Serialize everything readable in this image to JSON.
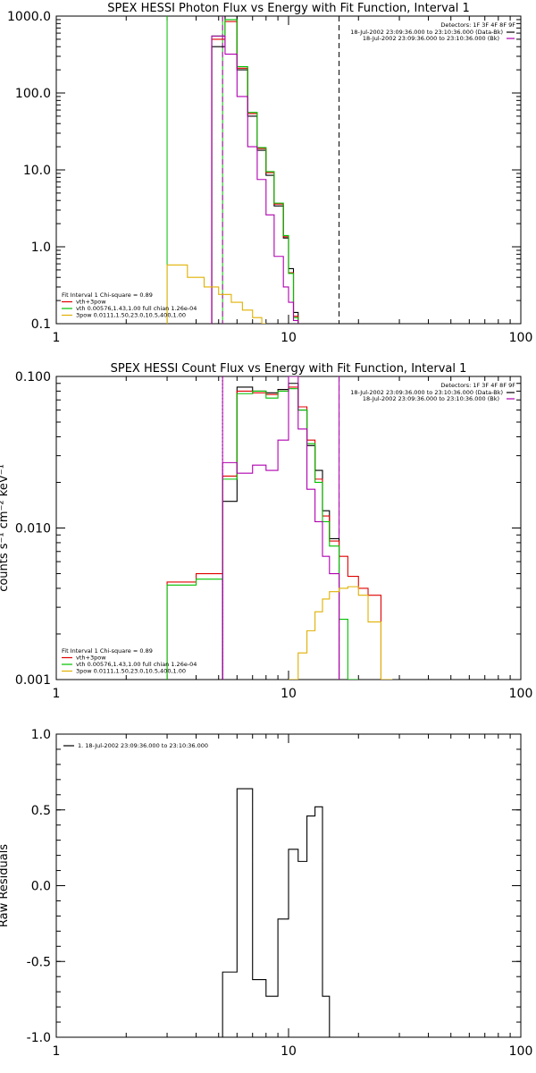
{
  "chart_data": [
    {
      "type": "line",
      "title": "SPEX HESSI Photon Flux vs Energy with Fit Function, Interval 1",
      "xlabel": "",
      "ylabel": "",
      "xscale": "log",
      "yscale": "log",
      "xlim": [
        1,
        100
      ],
      "ylim": [
        0.1,
        1000
      ],
      "xtick_labels": [
        "1",
        "10",
        "100"
      ],
      "ytick_labels": [
        "0.1",
        "1.0",
        "10.0",
        "100.0",
        "1000.0"
      ],
      "ytick_values": [
        0.1,
        1,
        10,
        100,
        1000
      ],
      "detectors_label": "Detectors: 1F 3F 4F 8F 9F",
      "time_labels": [
        "18-Jul-2002 23:09:36.000 to 23:10:36.000 (Data-Bk)",
        "18-Jul-2002 23:09:36.000 to 23:10:36.000 (Bk)"
      ],
      "fit_legend": [
        {
          "text": "Fit Interval 1    Chi-square = 0.89",
          "color": ""
        },
        {
          "text": "vth+3pow",
          "color": "#e00000"
        },
        {
          "text": "vth 0.00576,1.43,1.00  full chian 1.26e-04",
          "color": "#00c000"
        },
        {
          "text": "3pow 0.0111,1.50,23.0,10.5,400,1.00",
          "color": "#e0b000"
        }
      ],
      "vlines": [
        {
          "x": 3.0,
          "color": "#00c000",
          "style": "solid"
        },
        {
          "x": 5.2,
          "color": "#00c000",
          "style": "solid"
        },
        {
          "x": 5.2,
          "color": "#b000b0",
          "style": "dashed"
        },
        {
          "x": 16.5,
          "color": "#000000",
          "style": "dashed"
        }
      ],
      "edges": [
        3.0,
        3.33,
        3.67,
        4.0,
        4.33,
        4.67,
        5.0,
        5.33,
        5.67,
        6.0,
        6.33,
        6.67,
        7.0,
        7.33,
        7.67,
        8.0,
        8.33,
        8.67,
        9.0,
        9.5,
        10.0,
        10.5,
        11.0,
        11.5,
        12.0,
        12.5,
        13.0,
        14.0,
        15.0,
        16.0,
        17.0
      ],
      "series": [
        {
          "color": "#000000",
          "start": 5,
          "values": [
            400,
            400,
            1000,
            1000,
            200,
            200,
            50,
            50,
            18,
            18,
            8.5,
            8.5,
            3.4,
            3.4,
            1.3,
            0.52,
            0.14
          ]
        },
        {
          "color": "#e00000",
          "start": 5,
          "values": [
            500,
            500,
            850,
            850,
            210,
            210,
            54,
            54,
            19,
            19,
            9.2,
            9.2,
            3.6,
            3.6,
            1.35,
            0.46,
            0.125
          ]
        },
        {
          "color": "#00c000",
          "start": 5,
          "values": [
            550,
            550,
            900,
            900,
            220,
            220,
            56,
            56,
            19.5,
            19.5,
            9.5,
            9.5,
            3.7,
            3.7,
            1.4,
            0.45,
            0.12
          ]
        },
        {
          "color": "#b000b0",
          "start": 5,
          "values": [
            550,
            550,
            320,
            320,
            90,
            90,
            20,
            20,
            7.5,
            7.5,
            2.6,
            2.6,
            0.75,
            0.75,
            0.3,
            0.19,
            0.11
          ]
        },
        {
          "color": "#e0b000",
          "start": 0,
          "values": [
            0.58,
            0.58,
            0.4,
            0.4,
            0.3,
            0.3,
            0.24,
            0.24,
            0.19,
            0.19,
            0.15,
            0.15,
            0.12,
            0.12,
            0.1
          ]
        }
      ]
    },
    {
      "type": "line",
      "title": "SPEX HESSI Count Flux vs Energy with Fit Function, Interval 1",
      "xlabel": "",
      "ylabel": "counts s⁻¹ cm⁻² keV⁻¹",
      "xscale": "log",
      "yscale": "log",
      "xlim": [
        1,
        100
      ],
      "ylim": [
        0.001,
        0.1
      ],
      "xtick_labels": [
        "1",
        "10",
        "100"
      ],
      "ytick_labels": [
        "0.001",
        "0.010",
        "0.100"
      ],
      "ytick_values": [
        0.001,
        0.01,
        0.1
      ],
      "detectors_label": "Detectors: 1F 3F 4F 8F 9F",
      "time_labels": [
        "18-Jul-2002 23:09:36.000 to 23:10:36.000 (Data-Bk)",
        "18-Jul-2002 23:09:36.000 to 23:10:36.000 (Bk)"
      ],
      "fit_legend": [
        {
          "text": "Fit Interval 1    Chi-square = 0.89",
          "color": ""
        },
        {
          "text": "vth+3pow",
          "color": "#e00000"
        },
        {
          "text": "vth 0.00576,1.43,1.00  full chian 1.26e-04",
          "color": "#00c000"
        },
        {
          "text": "3pow 0.0111,1.50,23.0,10.5,400,1.00",
          "color": "#e0b000"
        }
      ],
      "vlines": [
        {
          "x": 5.2,
          "color": "#000000",
          "style": "dotted"
        },
        {
          "x": 5.2,
          "color": "#b000b0",
          "style": "solid"
        },
        {
          "x": 16.5,
          "color": "#000000",
          "style": "dashed"
        },
        {
          "x": 16.5,
          "color": "#b000b0",
          "style": "solid"
        }
      ],
      "edges": [
        3.0,
        4.0,
        5.2,
        6.0,
        7.0,
        8.0,
        9.0,
        10.0,
        11.0,
        12.0,
        13.0,
        14.0,
        15.0,
        16.5,
        18.0,
        20.0,
        22.0,
        25.0,
        28.0
      ],
      "series": [
        {
          "color": "#000000",
          "start": 2,
          "values": [
            0.015,
            0.085,
            0.08,
            0.078,
            0.082,
            0.09,
            0.06,
            0.035,
            0.024,
            0.013,
            0.0085
          ]
        },
        {
          "color": "#e00000",
          "start": 0,
          "values": [
            0.0044,
            0.005,
            0.022,
            0.08,
            0.078,
            0.076,
            0.08,
            0.085,
            0.063,
            0.038,
            0.021,
            0.012,
            0.0082,
            0.0065,
            0.0048,
            0.004,
            0.0036
          ]
        },
        {
          "color": "#00c000",
          "start": 0,
          "values": [
            0.0042,
            0.0046,
            0.021,
            0.077,
            0.08,
            0.072,
            0.08,
            0.083,
            0.06,
            0.036,
            0.02,
            0.011,
            0.0076,
            0.0025,
            0.001
          ]
        },
        {
          "color": "#b000b0",
          "start": 2,
          "values": [
            0.027,
            0.023,
            0.026,
            0.024,
            0.038,
            0.1,
            0.045,
            0.018,
            0.011,
            0.0065,
            0.005
          ]
        },
        {
          "color": "#e0b000",
          "start": 7,
          "values": [
            0.001,
            0.0015,
            0.0021,
            0.0028,
            0.0034,
            0.0038,
            0.004,
            0.0041,
            0.0036,
            0.0024,
            0.001
          ]
        }
      ]
    },
    {
      "type": "line",
      "title": "",
      "xlabel": "",
      "ylabel": "Raw Residuals",
      "xscale": "log",
      "yscale": "linear",
      "xlim": [
        1,
        100
      ],
      "ylim": [
        -1.0,
        1.0
      ],
      "xtick_labels": [
        "1",
        "10",
        "100"
      ],
      "ytick_labels": [
        "-1.0",
        "-0.5",
        "0.0",
        "0.5",
        "1.0"
      ],
      "ytick_values": [
        -1.0,
        -0.5,
        0.0,
        0.5,
        1.0
      ],
      "legend": [
        "1. 18-Jul-2002 23:09:36.000 to 23:10:36.000"
      ],
      "edges": [
        5.2,
        6.0,
        7.0,
        8.0,
        9.0,
        10.0,
        11.0,
        12.0,
        13.0,
        14.0,
        15.0,
        16.5
      ],
      "series": [
        {
          "color": "#000000",
          "start": 0,
          "values": [
            -0.57,
            0.64,
            -0.62,
            -0.73,
            -0.22,
            0.24,
            0.16,
            0.46,
            0.52,
            -0.73,
            -1.0
          ]
        }
      ]
    }
  ]
}
